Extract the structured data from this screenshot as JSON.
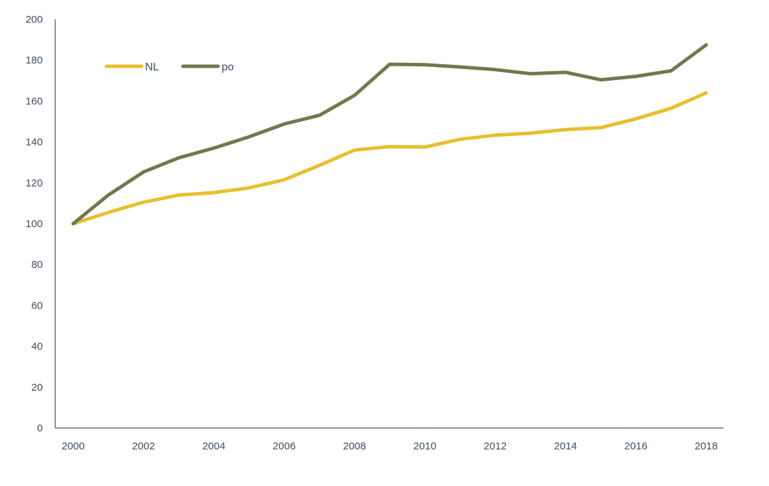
{
  "chart_data": {
    "type": "line",
    "title": "",
    "xlabel": "",
    "ylabel": "",
    "x": [
      2000,
      2001,
      2002,
      2003,
      2004,
      2005,
      2006,
      2007,
      2008,
      2009,
      2010,
      2011,
      2012,
      2013,
      2014,
      2015,
      2016,
      2017,
      2018
    ],
    "x_tick_labels": [
      "2000",
      "2002",
      "2004",
      "2006",
      "2008",
      "2010",
      "2012",
      "2014",
      "2016",
      "2018"
    ],
    "y_tick_labels": [
      "0",
      "20",
      "40",
      "60",
      "80",
      "100",
      "120",
      "140",
      "160",
      "180",
      "200"
    ],
    "xlim": [
      2000,
      2018
    ],
    "ylim": [
      0,
      200
    ],
    "grid": false,
    "legend_position": "top-left",
    "series": [
      {
        "name": "NL",
        "color": "#e8bf2e",
        "values": [
          100,
          105.5,
          110.5,
          114,
          115.2,
          117.5,
          121.5,
          128.5,
          136,
          137.7,
          137.5,
          141.3,
          143.3,
          144.3,
          146,
          147,
          151.3,
          156.5,
          164
        ]
      },
      {
        "name": "po",
        "color": "#6d7b4c",
        "values": [
          100,
          114,
          125.3,
          132.2,
          137,
          142.5,
          148.8,
          153,
          162.8,
          178,
          177.8,
          176.7,
          175.4,
          173.4,
          174.1,
          170.4,
          172.1,
          174.8,
          187.5
        ]
      }
    ]
  }
}
